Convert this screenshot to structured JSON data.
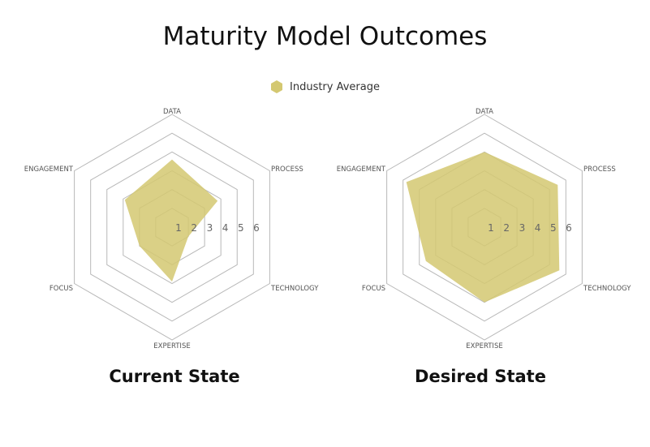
{
  "title": "Maturity Model Outcomes",
  "legend": {
    "label": "Industry Average",
    "color": "#d4c871"
  },
  "colors": {
    "fill": "#d4c871",
    "grid": "#b8b8b8",
    "label": "#555555",
    "tick": "#666666"
  },
  "chart_data": [
    {
      "type": "radar",
      "title": "Current State",
      "axes": [
        "DATA",
        "PROCESS",
        "TECHNOLOGY",
        "EXPERTISE",
        "FOCUS",
        "ENGAGEMENT"
      ],
      "tick_labels": [
        "1",
        "2",
        "3",
        "4",
        "5",
        "6"
      ],
      "range": [
        0,
        6
      ],
      "series": [
        {
          "name": "Industry Average",
          "values": [
            3.6,
            2.8,
            1.0,
            2.9,
            2.0,
            2.9
          ]
        }
      ]
    },
    {
      "type": "radar",
      "title": "Desired State",
      "axes": [
        "DATA",
        "PROCESS",
        "TECHNOLOGY",
        "EXPERTISE",
        "FOCUS",
        "ENGAGEMENT"
      ],
      "tick_labels": [
        "1",
        "2",
        "3",
        "4",
        "5",
        "6"
      ],
      "range": [
        0,
        6
      ],
      "series": [
        {
          "name": "Industry Average",
          "values": [
            4.0,
            4.5,
            4.6,
            4.0,
            3.6,
            4.8
          ]
        }
      ]
    }
  ]
}
